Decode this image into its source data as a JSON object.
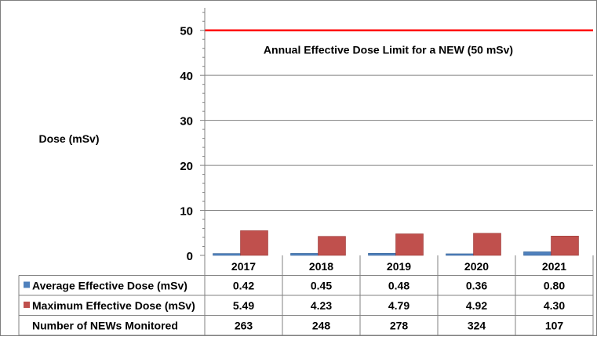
{
  "chart_data": {
    "type": "bar",
    "ylabel": "Dose (mSv)",
    "ylim": [
      0,
      55
    ],
    "yticks": [
      0,
      10,
      20,
      30,
      40,
      50
    ],
    "grid": true,
    "categories": [
      "2017",
      "2018",
      "2019",
      "2020",
      "2021"
    ],
    "series": [
      {
        "name": "Average Effective Dose (mSv)",
        "color": "#4F81BD",
        "values": [
          0.42,
          0.45,
          0.48,
          0.36,
          0.8
        ],
        "labels": [
          "0.42",
          "0.45",
          "0.48",
          "0.36",
          "0.80"
        ]
      },
      {
        "name": "Maximum Effective Dose (mSv)",
        "color": "#C0504D",
        "values": [
          5.49,
          4.23,
          4.79,
          4.92,
          4.3
        ],
        "labels": [
          "5.49",
          "4.23",
          "4.79",
          "4.92",
          "4.30"
        ]
      }
    ],
    "table_rows": [
      {
        "name": "Number of NEWs Monitored",
        "values": [
          "263",
          "248",
          "278",
          "324",
          "107"
        ]
      }
    ],
    "reference_line": {
      "value": 50,
      "label": "Annual Effective Dose Limit for a NEW (50 mSv)",
      "color": "#FF0000"
    }
  }
}
